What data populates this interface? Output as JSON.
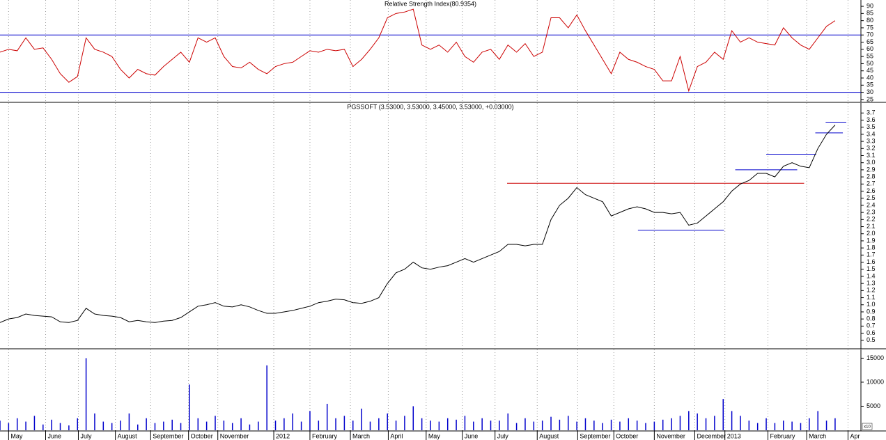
{
  "chart_data": [
    {
      "type": "line",
      "title": "Relative Strength Index(80.9354)",
      "color": "#cc0000",
      "x": [
        0,
        1,
        2,
        3,
        4,
        5,
        6,
        7,
        8,
        9,
        10,
        11,
        12,
        13,
        14,
        15,
        16,
        17,
        18,
        19,
        20,
        21,
        22,
        23,
        24,
        25,
        26,
        27,
        28,
        29,
        30,
        31,
        32,
        33,
        34,
        35,
        36,
        37,
        38,
        39,
        40,
        41,
        42,
        43,
        44,
        45,
        46,
        47,
        48,
        49,
        50,
        51,
        52,
        53,
        54,
        55,
        56,
        57,
        58,
        59,
        60,
        61,
        62,
        63,
        64,
        65,
        66,
        67,
        68,
        69,
        70,
        71,
        72,
        73,
        74,
        75,
        76,
        77,
        78,
        79,
        80,
        81,
        82,
        83,
        84,
        85,
        86,
        87,
        88,
        89,
        90,
        91,
        92,
        93,
        94,
        95,
        96,
        97
      ],
      "values": [
        58,
        60,
        59,
        68,
        60,
        61,
        53,
        43,
        37,
        41,
        68,
        60,
        58,
        55,
        46,
        40,
        46,
        43,
        42,
        48,
        53,
        58,
        51,
        68,
        65,
        68,
        55,
        48,
        47,
        51,
        46,
        43,
        48,
        50,
        51,
        55,
        59,
        58,
        60,
        59,
        60,
        48,
        53,
        60,
        68,
        82,
        85,
        86,
        88,
        63,
        60,
        63,
        58,
        65,
        55,
        51,
        58,
        60,
        53,
        63,
        58,
        64,
        55,
        58,
        82,
        82,
        75,
        84,
        73,
        63,
        53,
        43,
        58,
        53,
        51,
        48,
        46,
        38,
        38,
        55,
        31,
        48,
        51,
        58,
        53,
        73,
        65,
        68,
        65,
        64,
        63,
        75,
        68,
        63,
        60,
        68,
        76,
        80
      ],
      "xlim": [
        0,
        100
      ],
      "ylim": [
        23.5,
        94.4
      ],
      "yticks": [
        25,
        30,
        35,
        40,
        45,
        50,
        55,
        60,
        65,
        70,
        75,
        80,
        85,
        90
      ],
      "hlines": [
        {
          "y": 70,
          "color": "#0000cc"
        },
        {
          "y": 30,
          "color": "#0000cc"
        }
      ]
    },
    {
      "type": "line",
      "title": "PGSSOFT (3.53000, 3.53000, 3.45000, 3.53000, +0.03000)",
      "color": "#000000",
      "x": [
        0,
        1,
        2,
        3,
        4,
        5,
        6,
        7,
        8,
        9,
        10,
        11,
        12,
        13,
        14,
        15,
        16,
        17,
        18,
        19,
        20,
        21,
        22,
        23,
        24,
        25,
        26,
        27,
        28,
        29,
        30,
        31,
        32,
        33,
        34,
        35,
        36,
        37,
        38,
        39,
        40,
        41,
        42,
        43,
        44,
        45,
        46,
        47,
        48,
        49,
        50,
        51,
        52,
        53,
        54,
        55,
        56,
        57,
        58,
        59,
        60,
        61,
        62,
        63,
        64,
        65,
        66,
        67,
        68,
        69,
        70,
        71,
        72,
        73,
        74,
        75,
        76,
        77,
        78,
        79,
        80,
        81,
        82,
        83,
        84,
        85,
        86,
        87,
        88,
        89,
        90,
        91,
        92,
        93,
        94,
        95,
        96,
        97
      ],
      "values": [
        0.75,
        0.8,
        0.82,
        0.87,
        0.85,
        0.84,
        0.83,
        0.76,
        0.75,
        0.78,
        0.95,
        0.87,
        0.85,
        0.84,
        0.82,
        0.76,
        0.78,
        0.76,
        0.75,
        0.77,
        0.78,
        0.82,
        0.9,
        0.98,
        1.0,
        1.03,
        0.98,
        0.97,
        1.0,
        0.97,
        0.92,
        0.88,
        0.88,
        0.9,
        0.92,
        0.95,
        0.98,
        1.03,
        1.05,
        1.08,
        1.07,
        1.03,
        1.02,
        1.05,
        1.1,
        1.3,
        1.45,
        1.5,
        1.6,
        1.52,
        1.5,
        1.53,
        1.55,
        1.6,
        1.65,
        1.6,
        1.65,
        1.7,
        1.75,
        1.85,
        1.85,
        1.83,
        1.85,
        1.85,
        2.2,
        2.4,
        2.5,
        2.65,
        2.55,
        2.5,
        2.45,
        2.25,
        2.3,
        2.35,
        2.38,
        2.35,
        2.3,
        2.3,
        2.28,
        2.3,
        2.12,
        2.15,
        2.25,
        2.35,
        2.45,
        2.6,
        2.7,
        2.75,
        2.85,
        2.85,
        2.8,
        2.95,
        3.0,
        2.95,
        2.93,
        3.2,
        3.4,
        3.53
      ],
      "xlim": [
        0,
        100
      ],
      "ylim": [
        0.39,
        3.84
      ],
      "yticks": [
        0.5,
        0.6,
        0.7,
        0.8,
        0.9,
        {
          "value": 1,
          "label": "1.0"
        },
        1.1,
        1.2,
        1.3,
        1.4,
        1.5,
        1.6,
        1.7,
        1.8,
        1.9,
        {
          "value": 2,
          "label": "2.0"
        },
        2.1,
        2.2,
        2.3,
        2.4,
        2.5,
        2.6,
        2.7,
        2.8,
        2.9,
        {
          "value": 3,
          "label": "3.0"
        },
        3.1,
        3.2,
        3.3,
        3.4,
        3.5,
        3.6,
        3.7
      ],
      "lines": [
        {
          "y": 2.71,
          "x": [
            58.9,
            93.4
          ],
          "color": "#cc0000"
        },
        {
          "y": 2.05,
          "x": [
            74.1,
            84.1
          ],
          "color": "#0000cc"
        },
        {
          "y": 2.9,
          "x": [
            85.4,
            92.6
          ],
          "color": "#0000cc"
        },
        {
          "y": 3.12,
          "x": [
            89,
            94.8
          ],
          "color": "#0000cc"
        },
        {
          "y": 3.42,
          "x": [
            94.7,
            97.9
          ],
          "color": "#0000cc"
        },
        {
          "y": 3.57,
          "x": [
            95.9,
            98.3
          ],
          "color": "#0000cc"
        }
      ]
    },
    {
      "type": "bar",
      "unit_label": "x10",
      "color": "#0000cc",
      "x": [
        0,
        1,
        2,
        3,
        4,
        5,
        6,
        7,
        8,
        9,
        10,
        11,
        12,
        13,
        14,
        15,
        16,
        17,
        18,
        19,
        20,
        21,
        22,
        23,
        24,
        25,
        26,
        27,
        28,
        29,
        30,
        31,
        32,
        33,
        34,
        35,
        36,
        37,
        38,
        39,
        40,
        41,
        42,
        43,
        44,
        45,
        46,
        47,
        48,
        49,
        50,
        51,
        52,
        53,
        54,
        55,
        56,
        57,
        58,
        59,
        60,
        61,
        62,
        63,
        64,
        65,
        66,
        67,
        68,
        69,
        70,
        71,
        72,
        73,
        74,
        75,
        76,
        77,
        78,
        79,
        80,
        81,
        82,
        83,
        84,
        85,
        86,
        87,
        88,
        89,
        90,
        91,
        92,
        93,
        94,
        95,
        96,
        97
      ],
      "values": [
        2000,
        1500,
        2500,
        1800,
        3000,
        1200,
        2200,
        1500,
        1000,
        2500,
        15000,
        3500,
        1800,
        1500,
        2000,
        3500,
        1200,
        2500,
        1500,
        1800,
        2200,
        1500,
        9500,
        2500,
        1800,
        3000,
        2000,
        1500,
        2500,
        1200,
        1800,
        13500,
        2000,
        2500,
        3500,
        1800,
        4000,
        2000,
        5500,
        2500,
        3000,
        2000,
        4500,
        1800,
        2500,
        3500,
        2000,
        3000,
        5000,
        2500,
        2000,
        1800,
        2500,
        2200,
        3000,
        1800,
        2500,
        2000,
        2000,
        3500,
        1500,
        2500,
        1800,
        2000,
        2800,
        2200,
        3000,
        1800,
        2500,
        2000,
        1500,
        2200,
        1800,
        2500,
        2000,
        1500,
        1800,
        2200,
        2500,
        3000,
        4000,
        3500,
        2500,
        3000,
        6500,
        4000,
        3000,
        2000,
        1500,
        2500,
        1500,
        2000,
        1800,
        1500,
        2500,
        4000,
        2000,
        2500
      ],
      "xlim": [
        0,
        100
      ],
      "ylim": [
        0,
        16800
      ],
      "yticks": [
        5000,
        10000,
        15000
      ],
      "xticks": [
        {
          "value": 1.0,
          "label": "May"
        },
        {
          "value": 5.3,
          "label": "June"
        },
        {
          "value": 9.1,
          "label": "July"
        },
        {
          "value": 13.4,
          "label": "August"
        },
        {
          "value": 17.5,
          "label": "September"
        },
        {
          "value": 21.9,
          "label": "October"
        },
        {
          "value": 25.3,
          "label": "November"
        },
        {
          "value": 31.8,
          "label": "2012"
        },
        {
          "value": 36.0,
          "label": "February"
        },
        {
          "value": 40.7,
          "label": "March"
        },
        {
          "value": 45.1,
          "label": "April"
        },
        {
          "value": 49.5,
          "label": "May"
        },
        {
          "value": 53.7,
          "label": "June"
        },
        {
          "value": 57.5,
          "label": "July"
        },
        {
          "value": 62.4,
          "label": "August"
        },
        {
          "value": 67.1,
          "label": "September"
        },
        {
          "value": 71.3,
          "label": "October"
        },
        {
          "value": 76.0,
          "label": "November"
        },
        {
          "value": 80.7,
          "label": "December"
        },
        {
          "value": 84.2,
          "label": "2013"
        },
        {
          "value": 89.2,
          "label": "February"
        },
        {
          "value": 93.7,
          "label": "March"
        },
        {
          "value": 98.5,
          "label": "Apr"
        }
      ]
    }
  ]
}
